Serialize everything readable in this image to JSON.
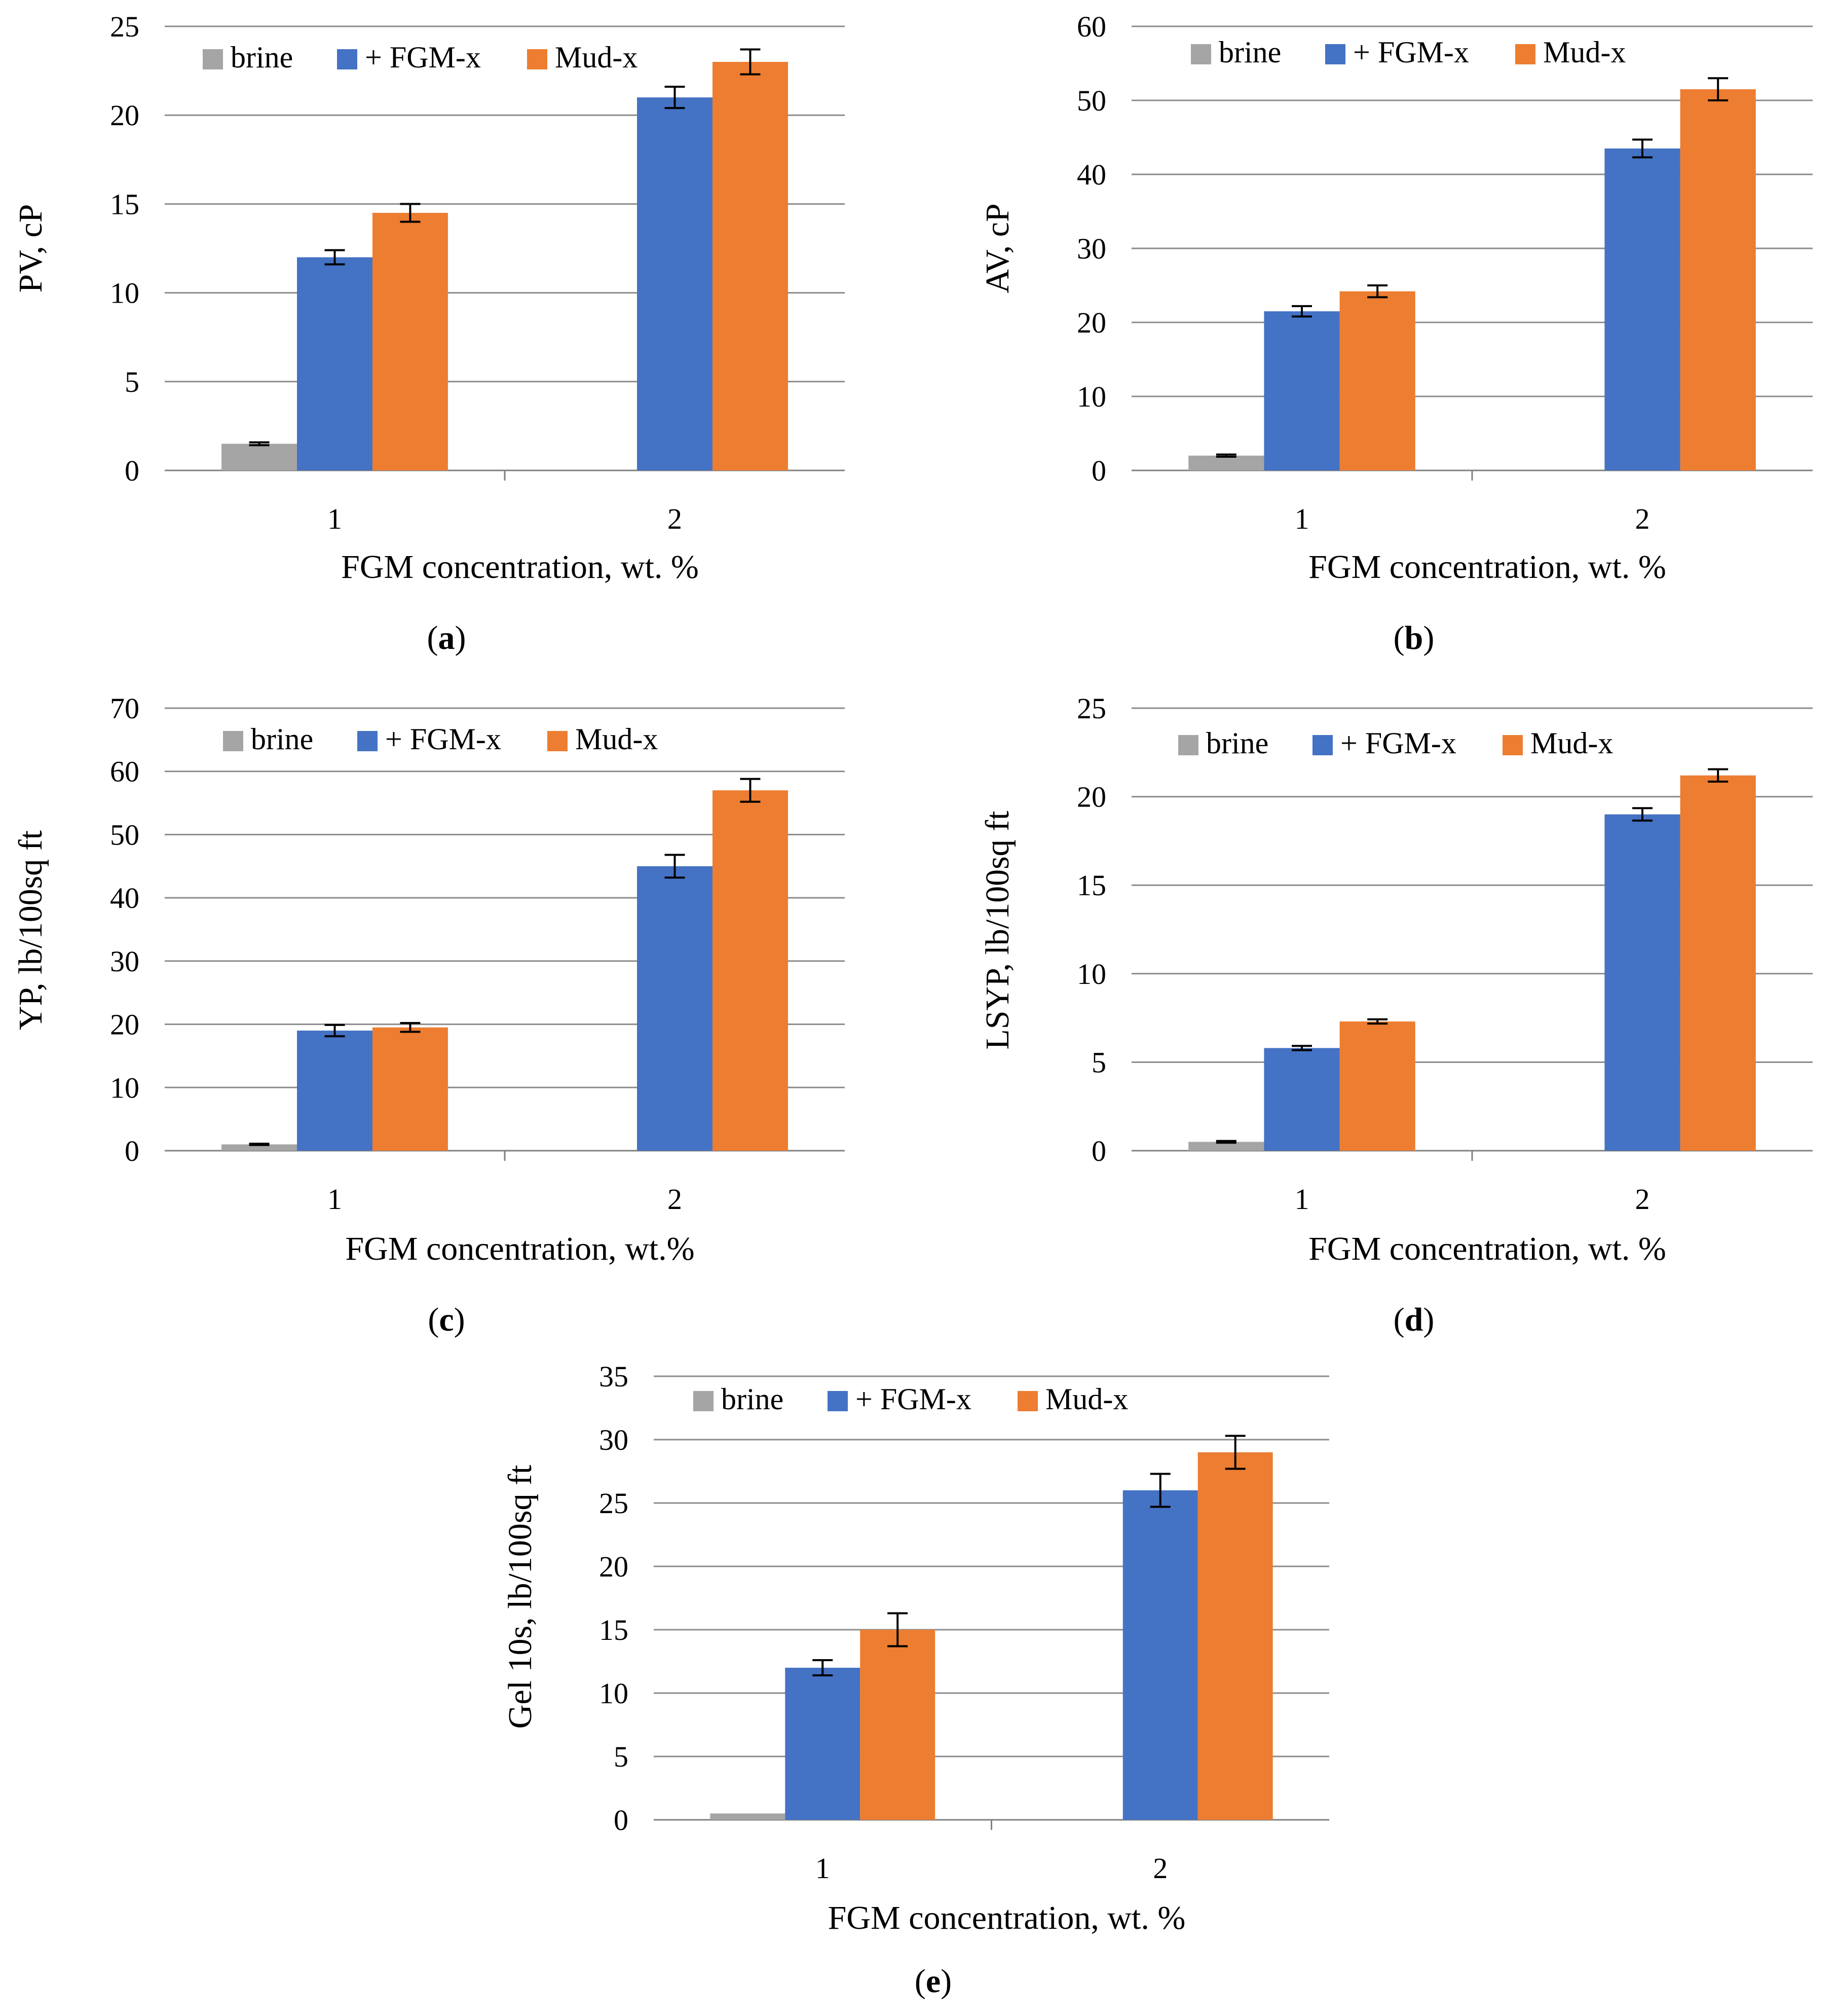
{
  "colors": {
    "brine": "#a5a5a5",
    "fgm": "#4472c4",
    "mud": "#ed7d31",
    "grid": "#8c8c8c",
    "axis": "#808080"
  },
  "legend_labels": [
    "brine",
    "+ FGM-x",
    "Mud-x"
  ],
  "chart_data": [
    {
      "id": "a",
      "type": "bar",
      "caption": "a",
      "categories": [
        "1",
        "2"
      ],
      "xlabel": "FGM concentration, wt. %",
      "ylabel": "PV, cP",
      "ylim": [
        0,
        25
      ],
      "yticks": [
        0,
        5,
        10,
        15,
        20,
        25
      ],
      "series": [
        {
          "name": "brine",
          "values": [
            1.5,
            null
          ],
          "errors": [
            0.08,
            null
          ]
        },
        {
          "name": "+ FGM-x",
          "values": [
            12,
            21
          ],
          "errors": [
            0.4,
            0.6
          ]
        },
        {
          "name": "Mud-x",
          "values": [
            14.5,
            23
          ],
          "errors": [
            0.5,
            0.7
          ]
        }
      ]
    },
    {
      "id": "b",
      "type": "bar",
      "caption": "b",
      "categories": [
        "1",
        "2"
      ],
      "xlabel": "FGM concentration, wt. %",
      "ylabel": "AV, cP",
      "ylim": [
        0,
        60
      ],
      "yticks": [
        0,
        10,
        20,
        30,
        40,
        50,
        60
      ],
      "series": [
        {
          "name": "brine",
          "values": [
            2,
            null
          ],
          "errors": [
            0.15,
            null
          ]
        },
        {
          "name": "+ FGM-x",
          "values": [
            21.5,
            43.5
          ],
          "errors": [
            0.7,
            1.2
          ]
        },
        {
          "name": "Mud-x",
          "values": [
            24.2,
            51.5
          ],
          "errors": [
            0.8,
            1.5
          ]
        }
      ]
    },
    {
      "id": "c",
      "type": "bar",
      "caption": "c",
      "categories": [
        "1",
        "2"
      ],
      "xlabel": "FGM concentration, wt.%",
      "ylabel": "YP, lb/100sq ft",
      "ylim": [
        0,
        70
      ],
      "yticks": [
        0,
        10,
        20,
        30,
        40,
        50,
        60,
        70
      ],
      "series": [
        {
          "name": "brine",
          "values": [
            1,
            null
          ],
          "errors": [
            0.1,
            null
          ]
        },
        {
          "name": "+ FGM-x",
          "values": [
            19,
            45
          ],
          "errors": [
            0.9,
            1.8
          ]
        },
        {
          "name": "Mud-x",
          "values": [
            19.5,
            57
          ],
          "errors": [
            0.7,
            1.8
          ]
        }
      ]
    },
    {
      "id": "d",
      "type": "bar",
      "caption": "d",
      "categories": [
        "1",
        "2"
      ],
      "xlabel": "FGM concentration, wt. %",
      "ylabel": "LSYP, lb/100sq ft",
      "ylim": [
        0,
        25
      ],
      "yticks": [
        0,
        5,
        10,
        15,
        20,
        25
      ],
      "series": [
        {
          "name": "brine",
          "values": [
            0.5,
            null
          ],
          "errors": [
            0.05,
            null
          ]
        },
        {
          "name": "+ FGM-x",
          "values": [
            5.8,
            19
          ],
          "errors": [
            0.12,
            0.35
          ]
        },
        {
          "name": "Mud-x",
          "values": [
            7.3,
            21.2
          ],
          "errors": [
            0.12,
            0.35
          ]
        }
      ]
    },
    {
      "id": "e",
      "type": "bar",
      "caption": "e",
      "categories": [
        "1",
        "2"
      ],
      "xlabel": "FGM concentration, wt. %",
      "ylabel": "Gel 10s, lb/100sq ft",
      "ylim": [
        0,
        35
      ],
      "yticks": [
        0,
        5,
        10,
        15,
        20,
        25,
        30,
        35
      ],
      "series": [
        {
          "name": "brine",
          "values": [
            0.5,
            null
          ],
          "errors": [
            0,
            null
          ]
        },
        {
          "name": "+ FGM-x",
          "values": [
            12,
            26
          ],
          "errors": [
            0.6,
            1.3
          ]
        },
        {
          "name": "Mud-x",
          "values": [
            15,
            29
          ],
          "errors": [
            1.3,
            1.3
          ]
        }
      ]
    }
  ]
}
